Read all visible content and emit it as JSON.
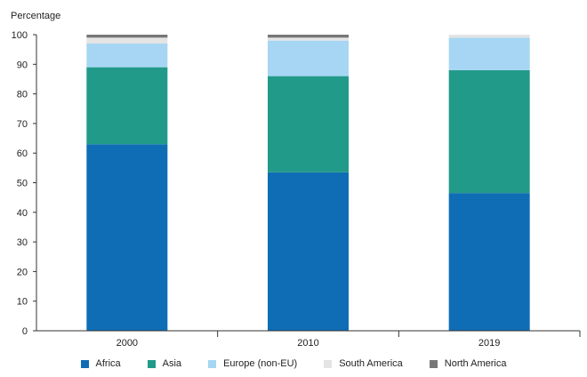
{
  "chart_data": {
    "type": "bar",
    "stacked": true,
    "title": "",
    "ylabel": "Percentage",
    "xlabel": "",
    "ylim": [
      0,
      100
    ],
    "yticks": [
      0,
      10,
      20,
      30,
      40,
      50,
      60,
      70,
      80,
      90,
      100
    ],
    "grid": false,
    "legend_position": "bottom",
    "categories": [
      "2000",
      "2010",
      "2019"
    ],
    "series": [
      {
        "name": "Africa",
        "color": "#0f6db5",
        "values": [
          63,
          53.5,
          46.5
        ]
      },
      {
        "name": "Asia",
        "color": "#229a8a",
        "values": [
          26,
          32.5,
          41.5
        ]
      },
      {
        "name": "Europe (non-EU)",
        "color": "#a6d6f3",
        "values": [
          8,
          12,
          11
        ]
      },
      {
        "name": "South America",
        "color": "#e4e4e4",
        "values": [
          2,
          1,
          1
        ]
      },
      {
        "name": "North America",
        "color": "#777777",
        "values": [
          1,
          1,
          0
        ]
      }
    ]
  }
}
